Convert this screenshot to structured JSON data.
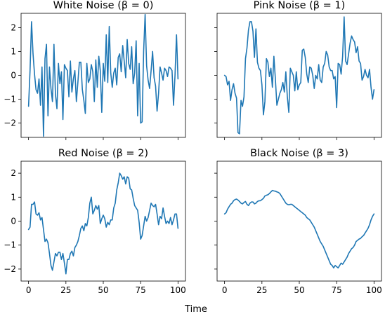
{
  "figure": {
    "xlabel": "Time",
    "color": "#1f77b4"
  },
  "chart_data": [
    {
      "type": "line",
      "title": "White Noise (β = 0)",
      "xlim": [
        -5,
        105
      ],
      "ylim": [
        -2.6,
        2.6
      ],
      "xticks": [
        0,
        25,
        50,
        75,
        100
      ],
      "yticks": [
        -2,
        -1,
        0,
        1,
        2
      ],
      "show_xticklabels": false,
      "show_yticklabels": true,
      "y": [
        -1.3,
        0.2,
        2.25,
        0.9,
        0.05,
        -0.6,
        -0.75,
        -0.15,
        -1.25,
        0.35,
        -2.55,
        0.7,
        1.3,
        -1.7,
        0.35,
        -0.55,
        -1.1,
        1.3,
        -0.8,
        -1.4,
        0.5,
        -0.35,
        0.15,
        -1.85,
        0.45,
        0.3,
        0.2,
        -0.9,
        0.6,
        -0.7,
        -0.15,
        0.2,
        -1.1,
        -0.3,
        0.55,
        0.55,
        -0.6,
        -1.05,
        -1.6,
        0.5,
        -0.3,
        -0.15,
        0.45,
        0.15,
        -1.1,
        0.65,
        -0.5,
        0.8,
        0.2,
        -1.55,
        0.5,
        -0.25,
        1.7,
        -0.3,
        2.05,
        0.1,
        -0.5,
        0.1,
        0.3,
        -0.4,
        0.75,
        0.9,
        0.15,
        1.25,
        0.6,
        -0.1,
        1.5,
        0.5,
        0.25,
        1.2,
        -0.35,
        0.1,
        1.45,
        -1.7,
        0.5,
        -2.0,
        -1.95,
        1.0,
        2.55,
        0.4,
        -0.2,
        -0.55,
        0.2,
        1.0,
        -0.1,
        -0.45,
        -1.5,
        -0.75,
        0.35,
        0.1,
        -0.2,
        0.3,
        0.2,
        -0.05,
        0.35,
        0.3,
        0.2,
        -1.25,
        0.0,
        1.7,
        -0.15
      ]
    },
    {
      "type": "line",
      "title": "Pink Noise (β = 1)",
      "xlim": [
        -5,
        105
      ],
      "ylim": [
        -2.6,
        2.6
      ],
      "xticks": [
        0,
        25,
        50,
        75,
        100
      ],
      "yticks": [
        -2,
        -1,
        0,
        1,
        2
      ],
      "show_xticklabels": false,
      "show_yticklabels": false,
      "y": [
        0.0,
        -0.05,
        -0.4,
        -0.25,
        -1.05,
        -0.6,
        -0.35,
        -0.75,
        -0.95,
        -2.4,
        -2.45,
        -1.05,
        -1.3,
        -0.9,
        0.7,
        1.15,
        1.9,
        2.25,
        2.25,
        1.85,
        0.75,
        1.95,
        0.55,
        0.3,
        0.2,
        -0.4,
        -1.65,
        -1.1,
        0.7,
        0.55,
        -0.05,
        0.3,
        -0.5,
        0.8,
        -0.15,
        -1.25,
        -1.0,
        -0.75,
        -0.6,
        -0.3,
        -0.7,
        0.15,
        -0.9,
        -1.55,
        0.3,
        0.15,
        0.0,
        -0.65,
        0.15,
        -0.6,
        -0.4,
        -0.3,
        1.05,
        1.1,
        0.75,
        0.05,
        -0.3,
        0.35,
        0.3,
        0.0,
        -0.55,
        0.0,
        -0.15,
        0.45,
        -0.2,
        -0.3,
        0.35,
        0.5,
        1.0,
        0.85,
        0.35,
        0.2,
        0.2,
        -0.15,
        -0.05,
        -1.35,
        0.5,
        0.45,
        0.05,
        0.8,
        2.45,
        0.6,
        0.45,
        0.9,
        1.35,
        1.65,
        1.5,
        1.4,
        0.95,
        1.2,
        0.6,
        0.5,
        -0.2,
        -0.05,
        0.25,
        0.0,
        -0.1,
        0.25,
        -0.5,
        -1.0,
        -0.6
      ]
    },
    {
      "type": "line",
      "title": "Red Noise (β = 2)",
      "xlim": [
        -5,
        105
      ],
      "ylim": [
        -2.5,
        2.5
      ],
      "xticks": [
        0,
        25,
        50,
        75,
        100
      ],
      "yticks": [
        -2,
        -1,
        0,
        1,
        2
      ],
      "show_xticklabels": true,
      "show_yticklabels": true,
      "y": [
        -0.35,
        -0.25,
        0.7,
        0.7,
        0.8,
        0.3,
        0.25,
        0.35,
        0.05,
        0.15,
        -0.35,
        -0.85,
        -0.75,
        -0.9,
        -1.35,
        -1.85,
        -2.05,
        -1.7,
        -1.35,
        -1.45,
        -1.3,
        -1.3,
        -1.6,
        -1.35,
        -1.75,
        -2.2,
        -1.6,
        -1.6,
        -1.35,
        -1.25,
        -1.45,
        -1.1,
        -1.0,
        -0.85,
        -0.6,
        -0.3,
        -0.2,
        -0.4,
        -0.1,
        -0.2,
        0.15,
        0.75,
        1.0,
        0.3,
        0.45,
        0.65,
        0.5,
        0.65,
        -0.1,
        0.1,
        0.25,
        0.1,
        -0.25,
        -0.05,
        -0.15,
        0.05,
        0.05,
        0.55,
        0.75,
        1.3,
        1.6,
        2.0,
        1.9,
        1.75,
        1.85,
        1.55,
        1.85,
        1.8,
        1.35,
        1.3,
        0.95,
        0.65,
        0.55,
        0.45,
        -0.05,
        -0.75,
        -0.6,
        -0.2,
        0.2,
        0.0,
        0.15,
        0.45,
        0.75,
        0.65,
        0.6,
        0.7,
        0.3,
        -0.15,
        0.2,
        0.1,
        0.55,
        0.2,
        -0.1,
        0.0,
        -0.1,
        0.15,
        -0.15,
        0.05,
        0.3,
        0.3,
        -0.3
      ]
    },
    {
      "type": "line",
      "title": "Black Noise (β = 3)",
      "xlim": [
        -5,
        105
      ],
      "ylim": [
        -2.5,
        2.5
      ],
      "xticks": [
        0,
        25,
        50,
        75,
        100
      ],
      "yticks": [
        -2,
        -1,
        0,
        1,
        2
      ],
      "show_xticklabels": true,
      "show_yticklabels": false,
      "y": [
        0.3,
        0.35,
        0.5,
        0.6,
        0.7,
        0.75,
        0.85,
        0.9,
        0.92,
        0.88,
        0.82,
        0.75,
        0.72,
        0.78,
        0.82,
        0.7,
        0.65,
        0.75,
        0.8,
        0.8,
        0.72,
        0.75,
        0.82,
        0.85,
        0.85,
        0.9,
        0.95,
        1.05,
        1.08,
        1.1,
        1.15,
        1.22,
        1.28,
        1.26,
        1.25,
        1.22,
        1.2,
        1.15,
        1.05,
        0.95,
        0.85,
        0.75,
        0.7,
        0.68,
        0.7,
        0.7,
        0.65,
        0.6,
        0.55,
        0.5,
        0.45,
        0.4,
        0.35,
        0.3,
        0.25,
        0.15,
        0.1,
        0.05,
        -0.05,
        -0.15,
        -0.25,
        -0.4,
        -0.55,
        -0.7,
        -0.85,
        -0.95,
        -1.05,
        -1.2,
        -1.35,
        -1.5,
        -1.65,
        -1.8,
        -1.85,
        -1.95,
        -1.85,
        -1.9,
        -1.95,
        -1.85,
        -1.75,
        -1.8,
        -1.7,
        -1.6,
        -1.5,
        -1.35,
        -1.25,
        -1.15,
        -1.1,
        -1.0,
        -0.85,
        -0.8,
        -0.75,
        -0.72,
        -0.65,
        -0.6,
        -0.5,
        -0.4,
        -0.3,
        -0.15,
        0.05,
        0.2,
        0.3
      ]
    }
  ]
}
